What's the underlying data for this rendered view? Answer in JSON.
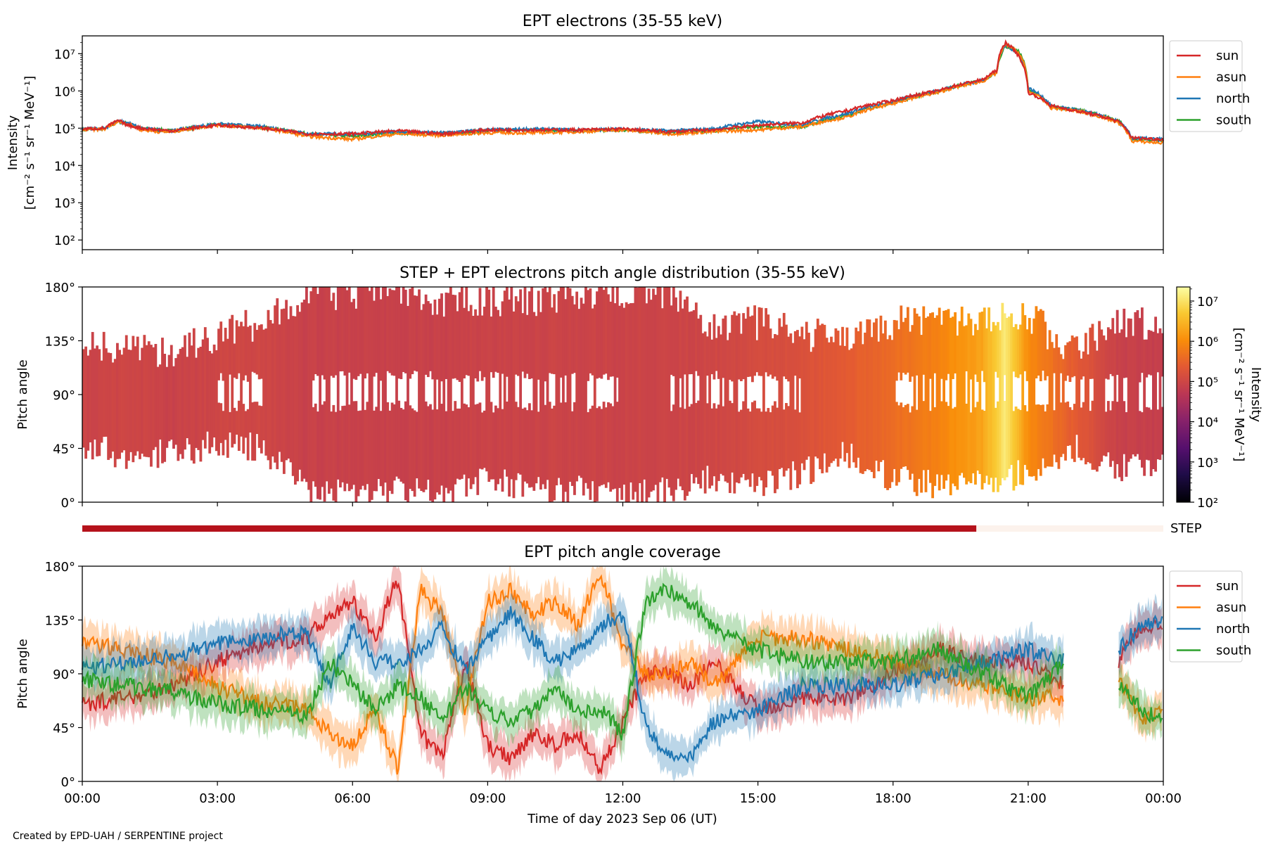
{
  "footer": "Created by EPD-UAH / SERPENTINE project",
  "chart_data": [
    {
      "type": "line",
      "title": "EPT electrons (35-55 keV)",
      "ylabel": [
        "Intensity",
        "[cm⁻² s⁻¹ sr⁻¹ MeV⁻¹]"
      ],
      "yscale": "log",
      "ylim": [
        55,
        30000000
      ],
      "yticks": [
        {
          "v": 100,
          "label": "10²"
        },
        {
          "v": 1000,
          "label": "10³"
        },
        {
          "v": 10000,
          "label": "10⁴"
        },
        {
          "v": 100000,
          "label": "10⁵"
        },
        {
          "v": 1000000,
          "label": "10⁶"
        },
        {
          "v": 10000000,
          "label": "10⁷"
        }
      ],
      "xlim_hours": [
        0,
        24
      ],
      "legend_position": "upper-right-outside",
      "series": [
        {
          "name": "sun",
          "color": "#d62728",
          "x": [
            0,
            0.5,
            0.8,
            1,
            1.3,
            1.7,
            2,
            3,
            4,
            5,
            6,
            7,
            8,
            9,
            10,
            11,
            12,
            13,
            14,
            15,
            16,
            17,
            18,
            19,
            20,
            20.3,
            20.5,
            20.8,
            21,
            21.5,
            22,
            23,
            23.3,
            24
          ],
          "y": [
            95000,
            100000,
            160000,
            120000,
            100000,
            90000,
            85000,
            120000,
            100000,
            70000,
            70000,
            85000,
            70000,
            90000,
            90000,
            90000,
            95000,
            80000,
            90000,
            120000,
            140000,
            300000,
            550000,
            1000000,
            2000000,
            3500000,
            20000000,
            8000000,
            900000,
            400000,
            300000,
            150000,
            55000,
            50000
          ]
        },
        {
          "name": "asun",
          "color": "#ff7f0e",
          "x": [
            0,
            0.5,
            0.8,
            1,
            1.3,
            1.7,
            2,
            3,
            4,
            5,
            6,
            7,
            8,
            9,
            10,
            11,
            12,
            13,
            14,
            15,
            16,
            17,
            18,
            19,
            20,
            20.3,
            20.5,
            20.8,
            21,
            21.5,
            22,
            23,
            23.3,
            24
          ],
          "y": [
            90000,
            95000,
            150000,
            130000,
            90000,
            80000,
            80000,
            120000,
            100000,
            60000,
            50000,
            70000,
            65000,
            75000,
            75000,
            80000,
            90000,
            70000,
            80000,
            90000,
            110000,
            200000,
            450000,
            900000,
            1800000,
            3000000,
            18000000,
            10000000,
            1000000,
            350000,
            300000,
            140000,
            45000,
            40000
          ]
        },
        {
          "name": "north",
          "color": "#1f77b4",
          "x": [
            0,
            0.5,
            0.8,
            1,
            1.3,
            1.7,
            2,
            3,
            4,
            5,
            6,
            7,
            8,
            9,
            10,
            11,
            12,
            13,
            14,
            15,
            16,
            17,
            18,
            19,
            20,
            20.3,
            20.5,
            20.8,
            21,
            21.5,
            22,
            23,
            23.3,
            24
          ],
          "y": [
            95000,
            100000,
            150000,
            140000,
            100000,
            90000,
            85000,
            130000,
            110000,
            70000,
            70000,
            80000,
            75000,
            90000,
            95000,
            90000,
            95000,
            85000,
            95000,
            150000,
            120000,
            250000,
            500000,
            1000000,
            1900000,
            3200000,
            17000000,
            9000000,
            1200000,
            400000,
            320000,
            150000,
            55000,
            50000
          ]
        },
        {
          "name": "south",
          "color": "#2ca02c",
          "x": [
            0,
            0.5,
            0.8,
            1,
            1.3,
            1.7,
            2,
            3,
            4,
            5,
            6,
            7,
            8,
            9,
            10,
            11,
            12,
            13,
            14,
            15,
            16,
            17,
            18,
            19,
            20,
            20.3,
            20.5,
            20.8,
            21,
            21.5,
            22,
            23,
            23.3,
            24
          ],
          "y": [
            90000,
            95000,
            150000,
            130000,
            100000,
            90000,
            85000,
            125000,
            105000,
            70000,
            60000,
            75000,
            70000,
            85000,
            90000,
            85000,
            90000,
            75000,
            85000,
            110000,
            110000,
            220000,
            480000,
            950000,
            1900000,
            3000000,
            16000000,
            11000000,
            1100000,
            380000,
            320000,
            160000,
            50000,
            45000
          ]
        }
      ]
    },
    {
      "type": "heatmap",
      "title": "STEP + EPT electrons pitch angle distribution (35-55 keV)",
      "ylabel": "Pitch angle",
      "ylim": [
        0,
        180
      ],
      "yticks": [
        "0°",
        "45°",
        "90°",
        "135°",
        "180°"
      ],
      "colorbar": {
        "label": [
          "Intensity",
          "[cm⁻² s⁻¹ sr⁻¹ MeV⁻¹]"
        ],
        "range_log10": [
          2,
          7.35
        ],
        "colormap": "inferno",
        "ticks": [
          {
            "v": 2,
            "label": "10²"
          },
          {
            "v": 3,
            "label": "10³"
          },
          {
            "v": 4,
            "label": "10⁴"
          },
          {
            "v": 5,
            "label": "10⁵"
          },
          {
            "v": 6,
            "label": "10⁶"
          },
          {
            "v": 7,
            "label": "10⁷"
          }
        ]
      },
      "hours": [
        0,
        1,
        2,
        3,
        4,
        5,
        6,
        7,
        8,
        9,
        10,
        11,
        12,
        13,
        14,
        15,
        16,
        17,
        18,
        19,
        20,
        20.5,
        21,
        22,
        23,
        24
      ],
      "log10_intensity": [
        4.95,
        5.0,
        4.9,
        5.0,
        5.0,
        4.9,
        4.9,
        4.9,
        4.9,
        4.95,
        4.95,
        4.95,
        4.95,
        4.95,
        5.0,
        5.1,
        5.2,
        5.4,
        5.6,
        5.9,
        6.3,
        7.1,
        6.0,
        5.4,
        4.9,
        4.85
      ],
      "min_pitch": [
        45,
        40,
        40,
        50,
        45,
        10,
        5,
        10,
        5,
        20,
        10,
        10,
        5,
        10,
        20,
        15,
        25,
        40,
        20,
        15,
        15,
        20,
        25,
        45,
        30,
        30
      ],
      "max_pitch": [
        130,
        130,
        125,
        140,
        150,
        175,
        175,
        175,
        170,
        170,
        170,
        175,
        175,
        175,
        150,
        150,
        140,
        140,
        150,
        155,
        150,
        160,
        155,
        125,
        150,
        150
      ],
      "gap_center": [
        false,
        false,
        false,
        true,
        false,
        true,
        true,
        true,
        true,
        true,
        true,
        true,
        false,
        true,
        true,
        true,
        false,
        false,
        true,
        true,
        true,
        true,
        true,
        true,
        true,
        true
      ],
      "step_coverage_label": "STEP",
      "step_coverage_end_hours": 19.85,
      "step_color": "#b5121b",
      "step_off_color": "#fcf2ec"
    },
    {
      "type": "line",
      "title": "EPT pitch angle coverage",
      "ylabel": "Pitch angle",
      "xlabel": "Time of day 2023 Sep 06 (UT)",
      "ylim": [
        0,
        180
      ],
      "yticks": [
        "0°",
        "45°",
        "90°",
        "135°",
        "180°"
      ],
      "xticks": [
        "00:00",
        "03:00",
        "06:00",
        "09:00",
        "12:00",
        "15:00",
        "18:00",
        "21:00",
        "00:00"
      ],
      "legend_position": "upper-right-outside",
      "hours": [
        0,
        1,
        2,
        3,
        4,
        5,
        5.5,
        6,
        6.5,
        7,
        7.5,
        8,
        8.5,
        9,
        9.5,
        10,
        10.5,
        11,
        11.5,
        12,
        12.5,
        13,
        13.5,
        14,
        15,
        16,
        17,
        18,
        19,
        20,
        21,
        21.8,
        22.8,
        23,
        23.5,
        24
      ],
      "series": [
        {
          "name": "sun",
          "color": "#d62728",
          "y": [
            65,
            70,
            80,
            100,
            115,
            120,
            140,
            150,
            120,
            170,
            40,
            20,
            100,
            30,
            20,
            40,
            30,
            40,
            10,
            50,
            90,
            90,
            80,
            100,
            60,
            70,
            70,
            90,
            110,
            100,
            100,
            80,
            null,
            100,
            130,
            130
          ]
        },
        {
          "name": "asun",
          "color": "#ff7f0e",
          "y": [
            115,
            110,
            100,
            80,
            65,
            60,
            40,
            30,
            60,
            10,
            160,
            140,
            60,
            150,
            160,
            140,
            150,
            130,
            175,
            115,
            90,
            90,
            100,
            80,
            120,
            120,
            110,
            100,
            90,
            80,
            70,
            70,
            null,
            90,
            50,
            60
          ]
        },
        {
          "name": "north",
          "color": "#1f77b4",
          "y": [
            95,
            100,
            105,
            115,
            120,
            125,
            80,
            130,
            100,
            100,
            110,
            130,
            90,
            120,
            140,
            120,
            100,
            110,
            130,
            140,
            50,
            20,
            20,
            50,
            60,
            80,
            80,
            80,
            90,
            100,
            110,
            100,
            null,
            110,
            130,
            135
          ]
        },
        {
          "name": "south",
          "color": "#2ca02c",
          "y": [
            85,
            80,
            75,
            65,
            60,
            55,
            100,
            80,
            60,
            80,
            70,
            50,
            80,
            60,
            50,
            60,
            80,
            60,
            60,
            40,
            150,
            160,
            150,
            130,
            110,
            100,
            100,
            100,
            110,
            90,
            70,
            100,
            null,
            80,
            60,
            50
          ]
        }
      ],
      "band_halfwidth_deg": 15
    }
  ]
}
